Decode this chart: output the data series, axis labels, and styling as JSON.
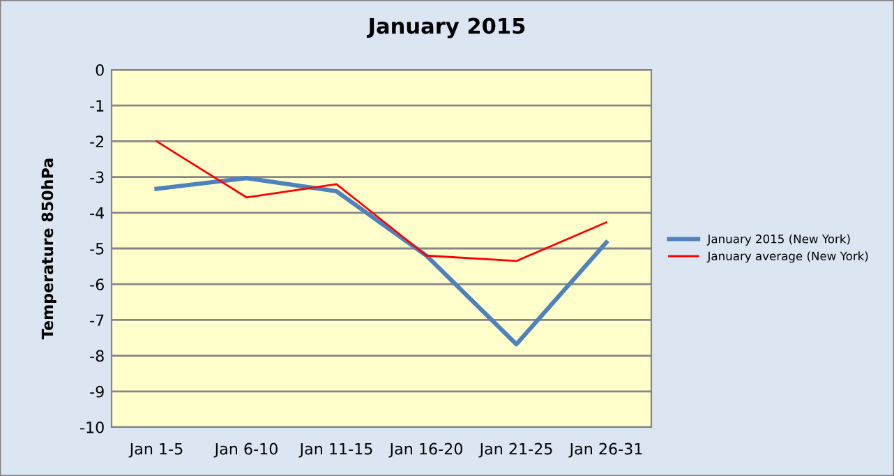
{
  "chart_data": {
    "type": "line",
    "title": "January 2015",
    "ylabel": "Temperature 850hPa",
    "categories": [
      "Jan 1-5",
      "Jan 6-10",
      "Jan 11-15",
      "Jan 16-20",
      "Jan 21-25",
      "Jan 26-31"
    ],
    "series": [
      {
        "name": "January 2015 (New York)",
        "color": "#4f81bd",
        "values": [
          -3.33,
          -3.03,
          -3.4,
          -5.2,
          -7.68,
          -4.83
        ]
      },
      {
        "name": "January average (New York)",
        "color": "#ff0000",
        "values": [
          -2.0,
          -3.57,
          -3.2,
          -5.2,
          -5.35,
          -4.27
        ]
      }
    ],
    "ylim": [
      -10,
      0
    ],
    "yticks": [
      -10,
      -9,
      -8,
      -7,
      -6,
      -5,
      -4,
      -3,
      -2,
      -1,
      0
    ],
    "grid": "y",
    "legend": "right",
    "marker": "none",
    "line_style": "solid"
  }
}
